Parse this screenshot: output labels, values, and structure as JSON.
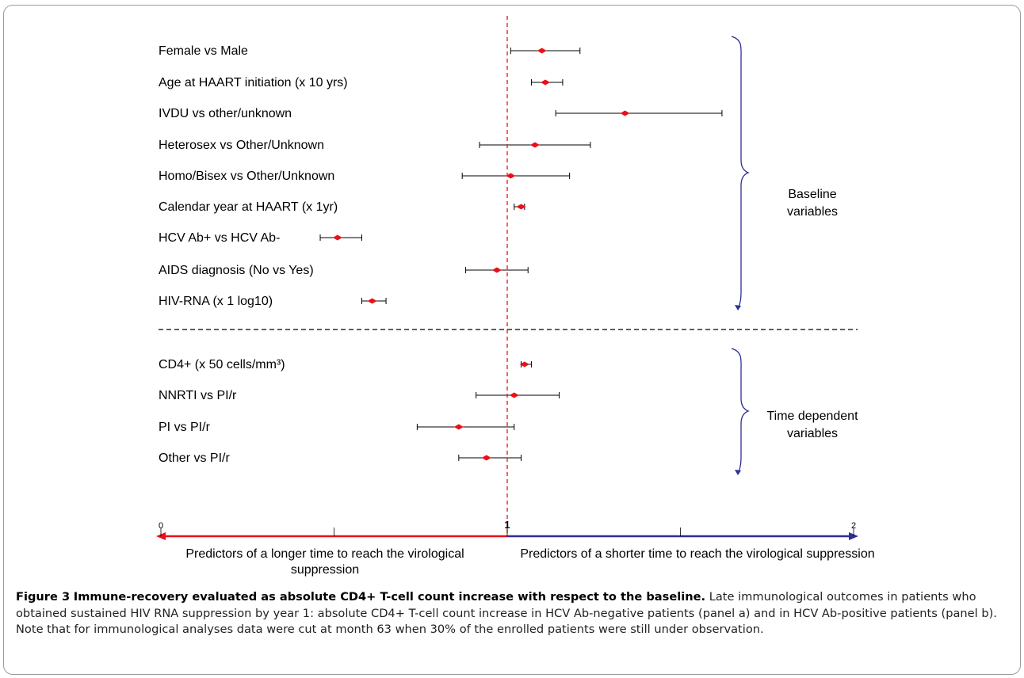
{
  "chart_data": {
    "type": "forest",
    "reference_line": 1,
    "xlim": [
      0,
      2
    ],
    "x_ticks": [
      "0",
      "1",
      "2"
    ],
    "direction_left": "Predictors of a longer time to reach the virological suppression",
    "direction_right": "Predictors of a shorter time to reach the virological suppression",
    "rows": [
      {
        "label": "Female vs Male",
        "estimate": 1.1,
        "lower": 1.01,
        "upper": 1.21
      },
      {
        "label": "Age at HAART initiation (x 10 yrs)",
        "estimate": 1.11,
        "lower": 1.07,
        "upper": 1.16
      },
      {
        "label": "IVDU vs other/unknown",
        "estimate": 1.34,
        "lower": 1.14,
        "upper": 1.62
      },
      {
        "label": "Heterosex vs Other/Unknown",
        "estimate": 1.08,
        "lower": 0.92,
        "upper": 1.24
      },
      {
        "label": "Homo/Bisex vs Other/Unknown",
        "estimate": 1.01,
        "lower": 0.87,
        "upper": 1.18
      },
      {
        "label": "Calendar year at HAART (x 1yr)",
        "estimate": 1.04,
        "lower": 1.02,
        "upper": 1.05
      },
      {
        "label": "HCV Ab+ vs HCV Ab-",
        "estimate": 0.51,
        "lower": 0.46,
        "upper": 0.58
      },
      {
        "label": "AIDS diagnosis (No vs Yes)",
        "estimate": 0.97,
        "lower": 0.88,
        "upper": 1.06
      },
      {
        "label": "HIV-RNA (x 1 log10)",
        "estimate": 0.61,
        "lower": 0.58,
        "upper": 0.65
      },
      {
        "label": "CD4+ (x 50 cells/mm³)",
        "estimate": 1.05,
        "lower": 1.04,
        "upper": 1.07
      },
      {
        "label": "NNRTI vs PI/r",
        "estimate": 1.02,
        "lower": 0.91,
        "upper": 1.15
      },
      {
        "label": "PI vs PI/r",
        "estimate": 0.86,
        "lower": 0.74,
        "upper": 1.02
      },
      {
        "label": "Other vs PI/r",
        "estimate": 0.94,
        "lower": 0.86,
        "upper": 1.04
      }
    ],
    "groups": [
      {
        "lines": [
          "Baseline",
          "variables"
        ],
        "rows": [
          0,
          8
        ]
      },
      {
        "lines": [
          "Time dependent",
          "variables"
        ],
        "rows": [
          9,
          12
        ]
      }
    ],
    "colors": {
      "point": "#e8101a",
      "reference_line": "#e8101a",
      "left_arrow": "#e8101a",
      "right_arrow": "#2e2f96",
      "bracket": "#2e2f96",
      "whisker": "#000000"
    }
  },
  "caption": {
    "label": "Figure 3",
    "title": "Immune-recovery evaluated as absolute CD4+ T-cell count increase with respect to the baseline.",
    "body": "Late immunological outcomes in patients who obtained sustained HIV RNA suppression by year 1: absolute CD4+ T-cell count increase in HCV Ab-negative patients (panel a) and in HCV Ab-positive patients (panel b). Note that for immunological analyses data were cut at month 63 when 30% of the enrolled patients were still under observation."
  }
}
